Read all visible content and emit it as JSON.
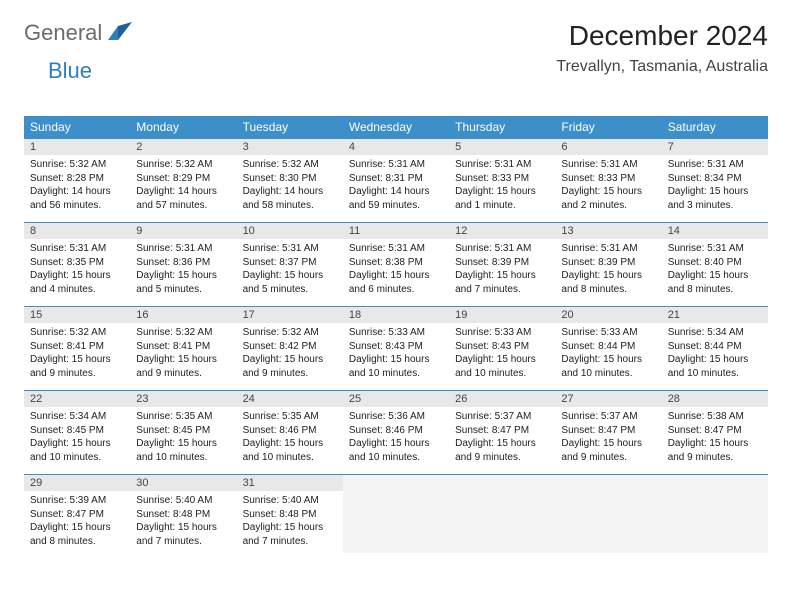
{
  "logo": {
    "word1": "General",
    "word2": "Blue"
  },
  "title": "December 2024",
  "location": "Trevallyn, Tasmania, Australia",
  "colors": {
    "header_bg": "#3d8fc9",
    "header_text": "#ffffff",
    "daynum_bg": "#e8e8e8",
    "row_border": "#3d8fc9",
    "logo_gray": "#6b6b6b",
    "logo_blue": "#2f7fc0",
    "body_bg": "#ffffff"
  },
  "typography": {
    "title_fontsize": 28,
    "location_fontsize": 16,
    "weekday_fontsize": 12,
    "daynum_fontsize": 11,
    "cell_fontsize": 10
  },
  "weekdays": [
    "Sunday",
    "Monday",
    "Tuesday",
    "Wednesday",
    "Thursday",
    "Friday",
    "Saturday"
  ],
  "days": [
    {
      "n": "1",
      "sunrise": "5:32 AM",
      "sunset": "8:28 PM",
      "daylight": "14 hours and 56 minutes."
    },
    {
      "n": "2",
      "sunrise": "5:32 AM",
      "sunset": "8:29 PM",
      "daylight": "14 hours and 57 minutes."
    },
    {
      "n": "3",
      "sunrise": "5:32 AM",
      "sunset": "8:30 PM",
      "daylight": "14 hours and 58 minutes."
    },
    {
      "n": "4",
      "sunrise": "5:31 AM",
      "sunset": "8:31 PM",
      "daylight": "14 hours and 59 minutes."
    },
    {
      "n": "5",
      "sunrise": "5:31 AM",
      "sunset": "8:33 PM",
      "daylight": "15 hours and 1 minute."
    },
    {
      "n": "6",
      "sunrise": "5:31 AM",
      "sunset": "8:33 PM",
      "daylight": "15 hours and 2 minutes."
    },
    {
      "n": "7",
      "sunrise": "5:31 AM",
      "sunset": "8:34 PM",
      "daylight": "15 hours and 3 minutes."
    },
    {
      "n": "8",
      "sunrise": "5:31 AM",
      "sunset": "8:35 PM",
      "daylight": "15 hours and 4 minutes."
    },
    {
      "n": "9",
      "sunrise": "5:31 AM",
      "sunset": "8:36 PM",
      "daylight": "15 hours and 5 minutes."
    },
    {
      "n": "10",
      "sunrise": "5:31 AM",
      "sunset": "8:37 PM",
      "daylight": "15 hours and 5 minutes."
    },
    {
      "n": "11",
      "sunrise": "5:31 AM",
      "sunset": "8:38 PM",
      "daylight": "15 hours and 6 minutes."
    },
    {
      "n": "12",
      "sunrise": "5:31 AM",
      "sunset": "8:39 PM",
      "daylight": "15 hours and 7 minutes."
    },
    {
      "n": "13",
      "sunrise": "5:31 AM",
      "sunset": "8:39 PM",
      "daylight": "15 hours and 8 minutes."
    },
    {
      "n": "14",
      "sunrise": "5:31 AM",
      "sunset": "8:40 PM",
      "daylight": "15 hours and 8 minutes."
    },
    {
      "n": "15",
      "sunrise": "5:32 AM",
      "sunset": "8:41 PM",
      "daylight": "15 hours and 9 minutes."
    },
    {
      "n": "16",
      "sunrise": "5:32 AM",
      "sunset": "8:41 PM",
      "daylight": "15 hours and 9 minutes."
    },
    {
      "n": "17",
      "sunrise": "5:32 AM",
      "sunset": "8:42 PM",
      "daylight": "15 hours and 9 minutes."
    },
    {
      "n": "18",
      "sunrise": "5:33 AM",
      "sunset": "8:43 PM",
      "daylight": "15 hours and 10 minutes."
    },
    {
      "n": "19",
      "sunrise": "5:33 AM",
      "sunset": "8:43 PM",
      "daylight": "15 hours and 10 minutes."
    },
    {
      "n": "20",
      "sunrise": "5:33 AM",
      "sunset": "8:44 PM",
      "daylight": "15 hours and 10 minutes."
    },
    {
      "n": "21",
      "sunrise": "5:34 AM",
      "sunset": "8:44 PM",
      "daylight": "15 hours and 10 minutes."
    },
    {
      "n": "22",
      "sunrise": "5:34 AM",
      "sunset": "8:45 PM",
      "daylight": "15 hours and 10 minutes."
    },
    {
      "n": "23",
      "sunrise": "5:35 AM",
      "sunset": "8:45 PM",
      "daylight": "15 hours and 10 minutes."
    },
    {
      "n": "24",
      "sunrise": "5:35 AM",
      "sunset": "8:46 PM",
      "daylight": "15 hours and 10 minutes."
    },
    {
      "n": "25",
      "sunrise": "5:36 AM",
      "sunset": "8:46 PM",
      "daylight": "15 hours and 10 minutes."
    },
    {
      "n": "26",
      "sunrise": "5:37 AM",
      "sunset": "8:47 PM",
      "daylight": "15 hours and 9 minutes."
    },
    {
      "n": "27",
      "sunrise": "5:37 AM",
      "sunset": "8:47 PM",
      "daylight": "15 hours and 9 minutes."
    },
    {
      "n": "28",
      "sunrise": "5:38 AM",
      "sunset": "8:47 PM",
      "daylight": "15 hours and 9 minutes."
    },
    {
      "n": "29",
      "sunrise": "5:39 AM",
      "sunset": "8:47 PM",
      "daylight": "15 hours and 8 minutes."
    },
    {
      "n": "30",
      "sunrise": "5:40 AM",
      "sunset": "8:48 PM",
      "daylight": "15 hours and 7 minutes."
    },
    {
      "n": "31",
      "sunrise": "5:40 AM",
      "sunset": "8:48 PM",
      "daylight": "15 hours and 7 minutes."
    }
  ],
  "labels": {
    "sunrise": "Sunrise: ",
    "sunset": "Sunset: ",
    "daylight": "Daylight: "
  },
  "grid": {
    "columns": 7,
    "rows": 5,
    "trailing_empty": 4
  }
}
